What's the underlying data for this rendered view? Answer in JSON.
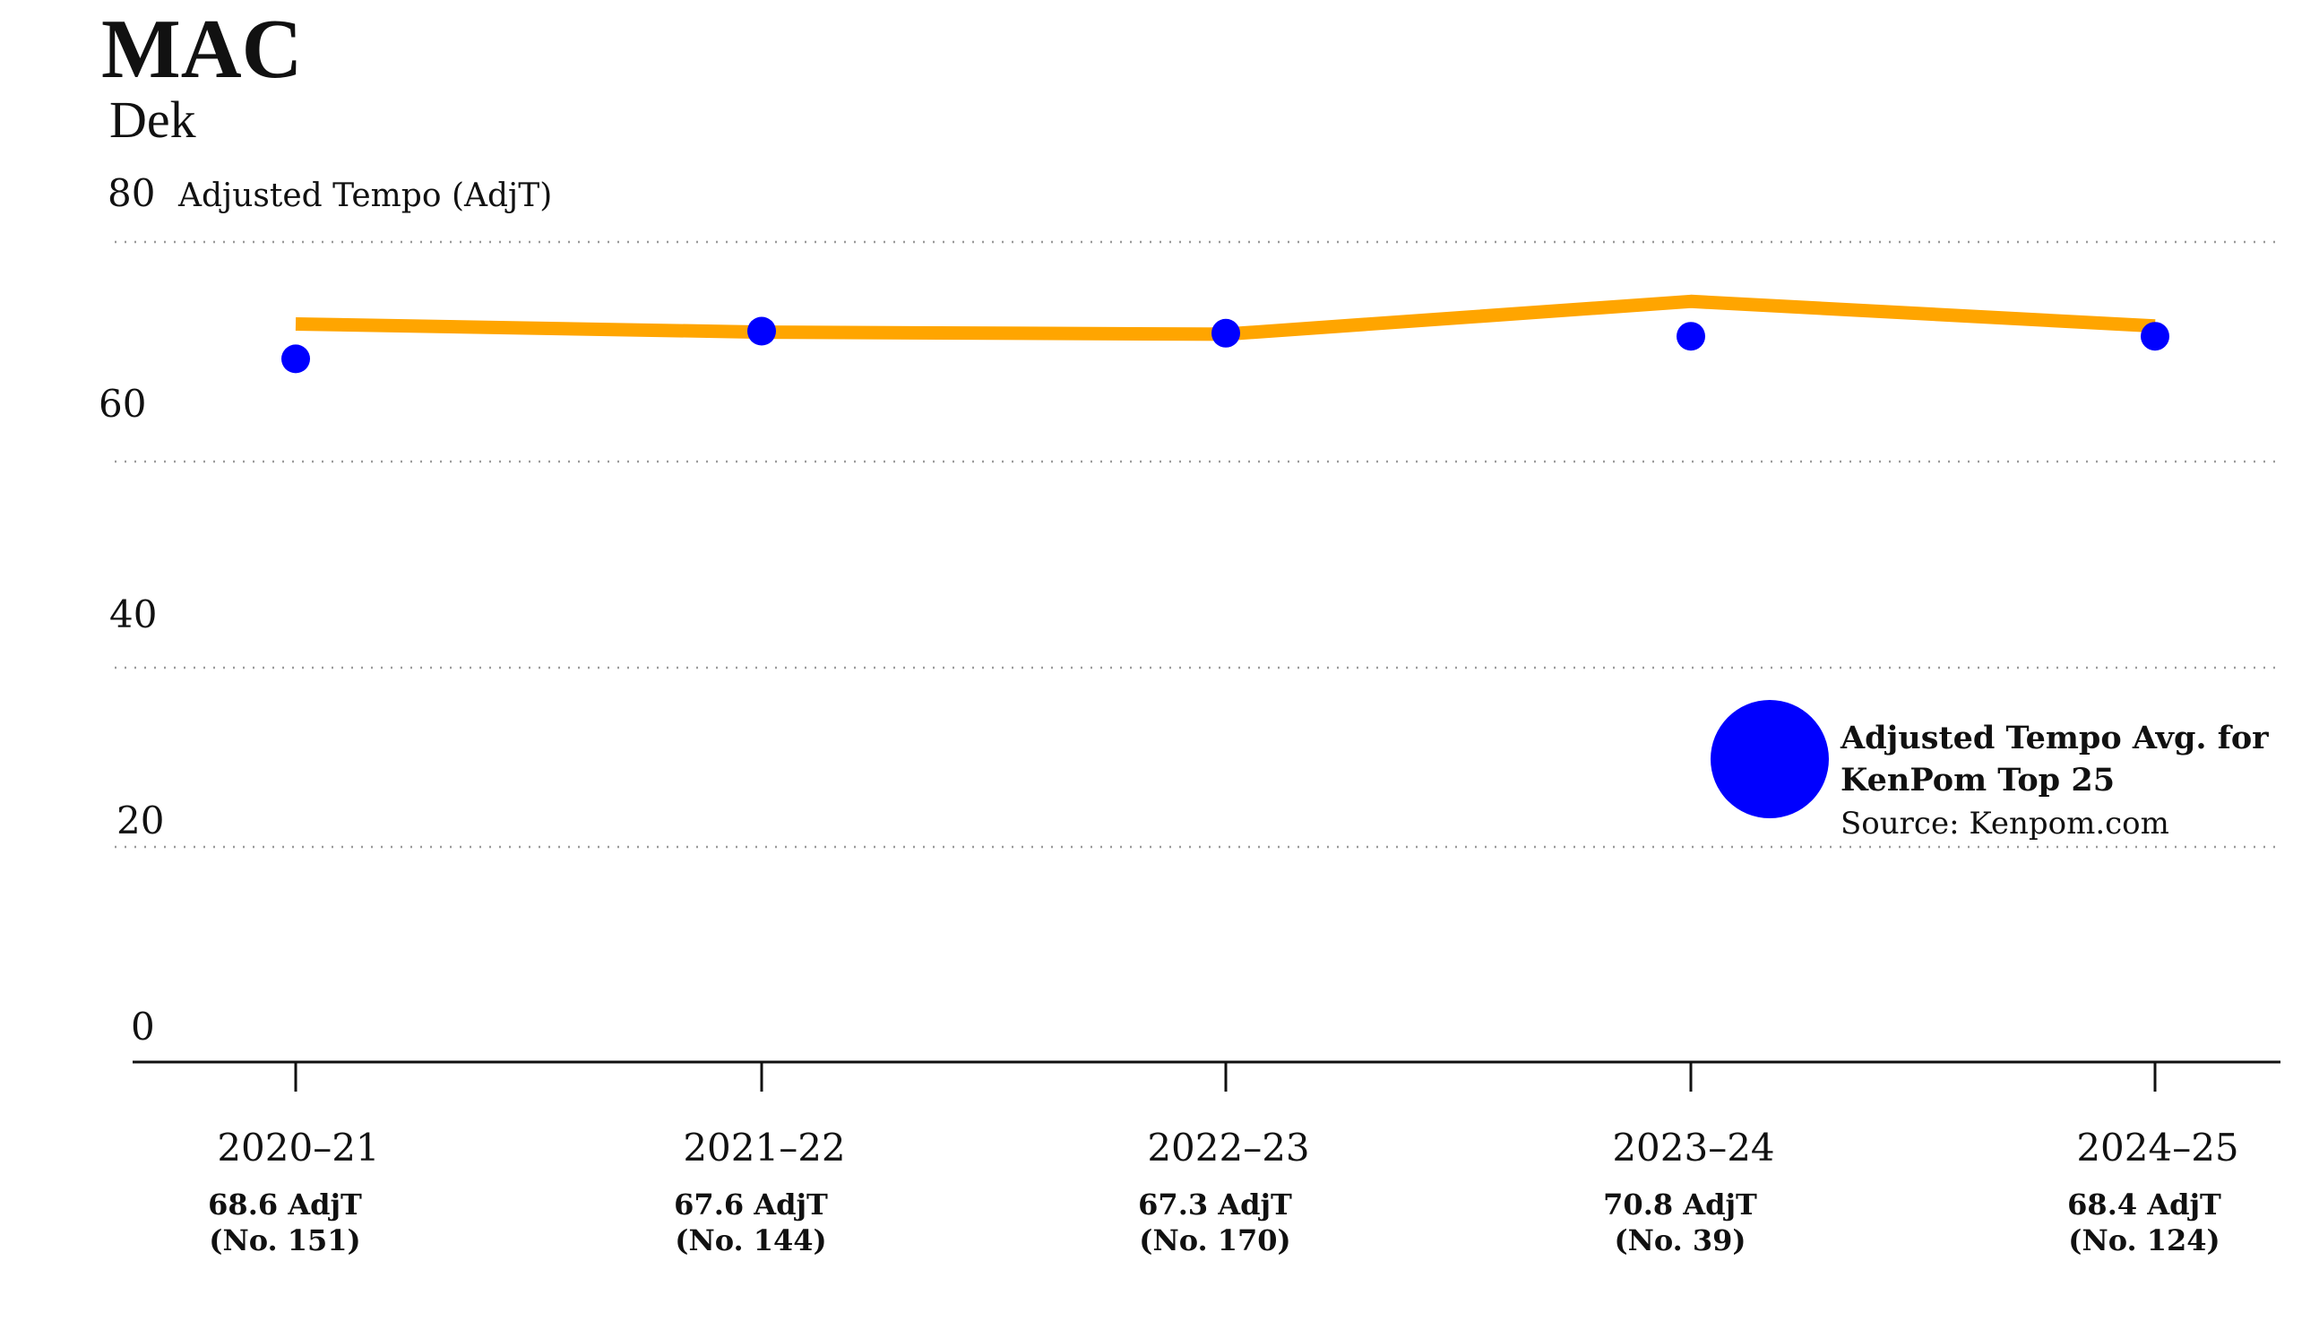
{
  "header": {
    "title": "MAC",
    "dek": "Dek"
  },
  "chart_data": {
    "type": "line",
    "title": "MAC",
    "subtitle": "Dek",
    "ylabel": "Adjusted Tempo (AdjT)",
    "xlabel": "",
    "ylim": [
      0,
      80
    ],
    "yticks": [
      "0",
      "20",
      "40",
      "60",
      "80"
    ],
    "grid": true,
    "categories": [
      "2020–21",
      "2021–22",
      "2022–23",
      "2023–24",
      "2024–25"
    ],
    "series": [
      {
        "kind": "line",
        "color": "#FFA500",
        "values": [
          72.0,
          71.2,
          71.0,
          74.2,
          71.8
        ]
      },
      {
        "kind": "points",
        "name": "Adjusted Tempo Avg. for KenPom Top 25",
        "color": "#0000FF",
        "values": [
          68.6,
          71.3,
          71.1,
          70.8,
          70.8
        ]
      }
    ],
    "data_labels": [
      {
        "value": "68.6 AdjT",
        "rank": "(No. 151)"
      },
      {
        "value": "67.6 AdjT",
        "rank": "(No. 144)"
      },
      {
        "value": "67.3 AdjT",
        "rank": "(No. 170)"
      },
      {
        "value": "70.8 AdjT",
        "rank": "(No. 39)"
      },
      {
        "value": "68.4 AdjT",
        "rank": "(No. 124)"
      }
    ],
    "legend": {
      "label_line1": "Adjusted Tempo Avg. for",
      "label_line2": "KenPom Top 25",
      "source": "Source: Kenpom.com",
      "placement": "right",
      "color": "#0000FF"
    }
  }
}
